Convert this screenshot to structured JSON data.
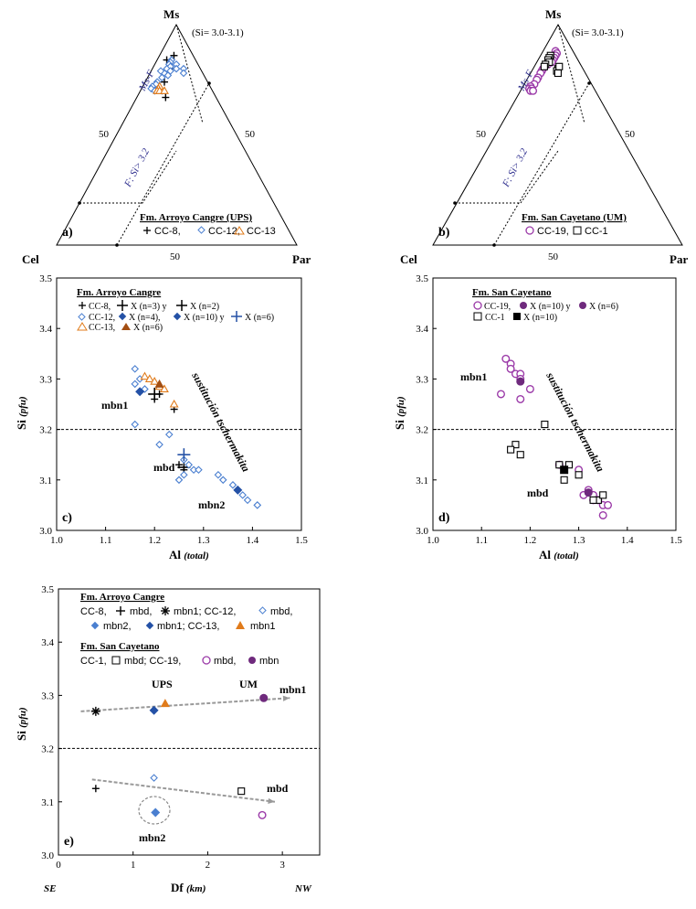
{
  "colors": {
    "black": "#000000",
    "blue": "#4a7fd0",
    "dark_blue": "#2451a6",
    "orange": "#e07b1b",
    "dark_orange": "#a34e12",
    "purple": "#9b3aa8",
    "dark_purple": "#6f2a7d",
    "navy_text": "#2b2b8c",
    "arrow_gray": "#999999"
  },
  "chart_data": [
    {
      "panel": "a",
      "type": "ternary",
      "panel_label": "a)",
      "vertex_labels": {
        "top": "Ms",
        "left": "Cel",
        "right": "Par"
      },
      "note": "(Si= 3.0-3.1)",
      "field_labels": [
        "Ms-F",
        "F: Si> 3.2"
      ],
      "tick_labels": [
        "50",
        "50",
        "50"
      ],
      "legend_title": "Fm. Arroyo Cangre (UPS)",
      "legend": [
        "CC-8,",
        "CC-12,",
        "CC-13"
      ],
      "series": [
        {
          "name": "CC-8",
          "marker": "plus",
          "color": "#000000",
          "points": [
            [
              0.86,
              0.08,
              0.06
            ],
            [
              0.84,
              0.12,
              0.04
            ],
            [
              0.8,
              0.12,
              0.08
            ],
            [
              0.74,
              0.18,
              0.08
            ],
            [
              0.67,
              0.21,
              0.12
            ]
          ]
        },
        {
          "name": "CC-12",
          "marker": "diamond-open",
          "color": "#4a7fd0",
          "points": [
            [
              0.84,
              0.1,
              0.06
            ],
            [
              0.83,
              0.11,
              0.06
            ],
            [
              0.82,
              0.12,
              0.06
            ],
            [
              0.81,
              0.12,
              0.07
            ],
            [
              0.8,
              0.14,
              0.06
            ],
            [
              0.82,
              0.09,
              0.09
            ],
            [
              0.8,
              0.1,
              0.1
            ],
            [
              0.79,
              0.13,
              0.08
            ],
            [
              0.78,
              0.16,
              0.06
            ],
            [
              0.77,
              0.15,
              0.08
            ],
            [
              0.76,
              0.18,
              0.06
            ],
            [
              0.74,
              0.21,
              0.05
            ],
            [
              0.73,
              0.22,
              0.05
            ],
            [
              0.72,
              0.24,
              0.04
            ],
            [
              0.71,
              0.25,
              0.04
            ],
            [
              0.7,
              0.24,
              0.06
            ],
            [
              0.7,
              0.21,
              0.09
            ],
            [
              0.79,
              0.17,
              0.04
            ],
            [
              0.8,
              0.07,
              0.13
            ],
            [
              0.78,
              0.08,
              0.14
            ]
          ]
        },
        {
          "name": "CC-13",
          "marker": "triangle-open",
          "color": "#e07b1b",
          "points": [
            [
              0.72,
              0.21,
              0.07
            ],
            [
              0.71,
              0.22,
              0.07
            ],
            [
              0.7,
              0.23,
              0.07
            ],
            [
              0.7,
              0.22,
              0.08
            ],
            [
              0.7,
              0.2,
              0.1
            ]
          ]
        }
      ]
    },
    {
      "panel": "b",
      "type": "ternary",
      "panel_label": "b)",
      "vertex_labels": {
        "top": "Ms",
        "left": "Cel",
        "right": "Par"
      },
      "note": "(Si= 3.0-3.1)",
      "field_labels": [
        "Ms-F",
        "F: Si> 3.2"
      ],
      "tick_labels": [
        "50",
        "50",
        "50"
      ],
      "legend_title": "Fm. San Cayetano (UM)",
      "legend": [
        "CC-19,",
        "CC-1"
      ],
      "series": [
        {
          "name": "CC-19",
          "marker": "circle-open",
          "color": "#9b3aa8",
          "points": [
            [
              0.88,
              0.07,
              0.05
            ],
            [
              0.87,
              0.07,
              0.06
            ],
            [
              0.86,
              0.08,
              0.06
            ],
            [
              0.85,
              0.09,
              0.06
            ],
            [
              0.84,
              0.1,
              0.06
            ],
            [
              0.83,
              0.11,
              0.06
            ],
            [
              0.82,
              0.13,
              0.05
            ],
            [
              0.8,
              0.16,
              0.04
            ],
            [
              0.79,
              0.17,
              0.04
            ],
            [
              0.78,
              0.18,
              0.04
            ],
            [
              0.76,
              0.2,
              0.04
            ],
            [
              0.75,
              0.21,
              0.04
            ],
            [
              0.73,
              0.23,
              0.04
            ],
            [
              0.72,
              0.25,
              0.03
            ],
            [
              0.71,
              0.26,
              0.03
            ],
            [
              0.71,
              0.25,
              0.04
            ],
            [
              0.7,
              0.26,
              0.04
            ],
            [
              0.7,
              0.25,
              0.05
            ]
          ]
        },
        {
          "name": "CC-1",
          "marker": "square-open",
          "color": "#000000",
          "points": [
            [
              0.86,
              0.1,
              0.04
            ],
            [
              0.85,
              0.11,
              0.04
            ],
            [
              0.84,
              0.12,
              0.04
            ],
            [
              0.83,
              0.12,
              0.05
            ],
            [
              0.82,
              0.14,
              0.04
            ],
            [
              0.81,
              0.15,
              0.04
            ],
            [
              0.8,
              0.1,
              0.1
            ],
            [
              0.79,
              0.11,
              0.1
            ],
            [
              0.78,
              0.11,
              0.11
            ],
            [
              0.81,
              0.09,
              0.1
            ]
          ]
        }
      ]
    },
    {
      "panel": "c",
      "type": "scatter",
      "panel_label": "c)",
      "xlabel": "Al",
      "xlabel_italic": "(total)",
      "ylabel": "Si",
      "ylabel_italic": "(pfu)",
      "xlim": [
        1.0,
        1.5
      ],
      "ylim": [
        3.0,
        3.5
      ],
      "xticks": [
        "1.0",
        "1.1",
        "1.2",
        "1.3",
        "1.4",
        "1.5"
      ],
      "yticks": [
        "3.0",
        "3.1",
        "3.2",
        "3.3",
        "3.4",
        "3.5"
      ],
      "hline": 3.2,
      "annotations": [
        "sustitución tschermakita",
        "mbn1",
        "mbd",
        "mbn2"
      ],
      "legend_title": "Fm. Arroyo Cangre",
      "legend_lines": [
        [
          "CC-8,",
          "X (n=3) y",
          "X (n=2)"
        ],
        [
          "CC-12,",
          "X (n=4),",
          "X (n=10) y",
          "X (n=6)"
        ],
        [
          "CC-13,",
          "X (n=6)"
        ]
      ],
      "series": [
        {
          "name": "CC-8",
          "marker": "plus",
          "color": "#000000",
          "points": [
            [
              1.21,
              3.27
            ],
            [
              1.2,
              3.26
            ],
            [
              1.24,
              3.24
            ],
            [
              1.25,
              3.13
            ],
            [
              1.26,
              3.12
            ]
          ]
        },
        {
          "name": "CC-8 X (n=3)",
          "marker": "plus-large",
          "color": "#000000",
          "points": [
            [
              1.2,
              3.27
            ]
          ]
        },
        {
          "name": "CC-8 X (n=2)",
          "marker": "plus-large",
          "color": "#000000",
          "points": [
            [
              1.26,
              3.125
            ]
          ]
        },
        {
          "name": "CC-12",
          "marker": "diamond-open",
          "color": "#4a7fd0",
          "points": [
            [
              1.16,
              3.32
            ],
            [
              1.17,
              3.3
            ],
            [
              1.16,
              3.29
            ],
            [
              1.18,
              3.28
            ],
            [
              1.16,
              3.21
            ],
            [
              1.23,
              3.19
            ],
            [
              1.21,
              3.17
            ],
            [
              1.26,
              3.14
            ],
            [
              1.27,
              3.13
            ],
            [
              1.28,
              3.12
            ],
            [
              1.29,
              3.12
            ],
            [
              1.26,
              3.11
            ],
            [
              1.33,
              3.11
            ],
            [
              1.34,
              3.1
            ],
            [
              1.36,
              3.09
            ],
            [
              1.37,
              3.08
            ],
            [
              1.38,
              3.07
            ],
            [
              1.39,
              3.06
            ],
            [
              1.41,
              3.05
            ],
            [
              1.41,
              3.05
            ],
            [
              1.25,
              3.1
            ]
          ]
        },
        {
          "name": "CC-12 X (n=4)",
          "marker": "diamond-filled",
          "color": "#2451a6",
          "points": [
            [
              1.17,
              3.275
            ]
          ]
        },
        {
          "name": "CC-12 X (n=10)",
          "marker": "plus-blue",
          "color": "#2451a6",
          "points": [
            [
              1.26,
              3.15
            ]
          ]
        },
        {
          "name": "CC-12 X (n=6)",
          "marker": "diamond-filled",
          "color": "#2451a6",
          "points": [
            [
              1.37,
              3.08
            ]
          ]
        },
        {
          "name": "CC-13",
          "marker": "triangle-open",
          "color": "#e07b1b",
          "points": [
            [
              1.18,
              3.305
            ],
            [
              1.19,
              3.3
            ],
            [
              1.2,
              3.295
            ],
            [
              1.21,
              3.285
            ],
            [
              1.22,
              3.28
            ],
            [
              1.24,
              3.25
            ]
          ]
        },
        {
          "name": "CC-13 X (n=6)",
          "marker": "triangle-filled",
          "color": "#a34e12",
          "points": [
            [
              1.21,
              3.29
            ]
          ]
        }
      ]
    },
    {
      "panel": "d",
      "type": "scatter",
      "panel_label": "d)",
      "xlabel": "Al",
      "xlabel_italic": "(total)",
      "ylabel": "Si",
      "ylabel_italic": "(pfu)",
      "xlim": [
        1.0,
        1.5
      ],
      "ylim": [
        3.0,
        3.5
      ],
      "xticks": [
        "1.0",
        "1.1",
        "1.2",
        "1.3",
        "1.4",
        "1.5"
      ],
      "yticks": [
        "3.0",
        "3.1",
        "3.2",
        "3.3",
        "3.4",
        "3.5"
      ],
      "hline": 3.2,
      "annotations": [
        "sustitución tschermakita",
        "mbn1",
        "mbd"
      ],
      "legend_title": "Fm. San Cayetano",
      "legend_lines": [
        [
          "CC-19,",
          "X (n=10) y",
          "X (n=6)"
        ],
        [
          "CC-1",
          "X (n=10)"
        ]
      ],
      "series": [
        {
          "name": "CC-19",
          "marker": "circle-open",
          "color": "#9b3aa8",
          "points": [
            [
              1.15,
              3.34
            ],
            [
              1.16,
              3.33
            ],
            [
              1.16,
              3.32
            ],
            [
              1.17,
              3.31
            ],
            [
              1.14,
              3.27
            ],
            [
              1.18,
              3.31
            ],
            [
              1.18,
              3.3
            ],
            [
              1.2,
              3.28
            ],
            [
              1.18,
              3.26
            ],
            [
              1.26,
              3.13
            ],
            [
              1.3,
              3.12
            ],
            [
              1.31,
              3.07
            ],
            [
              1.33,
              3.06
            ],
            [
              1.34,
              3.06
            ],
            [
              1.35,
              3.05
            ],
            [
              1.36,
              3.05
            ],
            [
              1.35,
              3.03
            ],
            [
              1.32,
              3.08
            ],
            [
              1.33,
              3.07
            ]
          ]
        },
        {
          "name": "CC-19 X (n=10)",
          "marker": "circle-filled",
          "color": "#6f2a7d",
          "points": [
            [
              1.18,
              3.295
            ]
          ]
        },
        {
          "name": "CC-19 X (n=6)",
          "marker": "circle-filled",
          "color": "#6f2a7d",
          "points": [
            [
              1.32,
              3.075
            ]
          ]
        },
        {
          "name": "CC-1",
          "marker": "square-open",
          "color": "#000000",
          "points": [
            [
              1.17,
              3.17
            ],
            [
              1.16,
              3.16
            ],
            [
              1.18,
              3.15
            ],
            [
              1.23,
              3.21
            ],
            [
              1.26,
              3.13
            ],
            [
              1.28,
              3.13
            ],
            [
              1.27,
              3.1
            ],
            [
              1.3,
              3.11
            ],
            [
              1.34,
              3.06
            ],
            [
              1.35,
              3.07
            ],
            [
              1.33,
              3.06
            ]
          ]
        },
        {
          "name": "CC-1 X (n=10)",
          "marker": "square-filled",
          "color": "#000000",
          "points": [
            [
              1.27,
              3.12
            ]
          ]
        }
      ]
    },
    {
      "panel": "e",
      "type": "scatter",
      "panel_label": "e)",
      "xlabel": "Df",
      "xlabel_italic": "(km)",
      "ylabel": "Si",
      "ylabel_italic": "(pfu)",
      "xlim": [
        0,
        3.5
      ],
      "ylim": [
        3.0,
        3.5
      ],
      "xticks": [
        "0",
        "1",
        "2",
        "3"
      ],
      "yticks": [
        "3.0",
        "3.1",
        "3.2",
        "3.3",
        "3.4",
        "3.5"
      ],
      "hline": 3.2,
      "axis_end_labels": [
        "SE",
        "NW"
      ],
      "annotations": [
        "UPS",
        "UM",
        "mbn1",
        "mbd",
        "mbn2"
      ],
      "legend_title_1": "Fm. Arroyo Cangre",
      "legend_lines_1": [
        [
          "CC-8,",
          "mbd,",
          "mbn1; CC-12,",
          "mbd,"
        ],
        [
          "mbn2,",
          "mbn1; CC-13,",
          "mbn1"
        ]
      ],
      "legend_title_2": "Fm. San Cayetano",
      "legend_lines_2": [
        [
          "CC-1,",
          "mbd; CC-19,",
          "mbd,",
          "mbn"
        ]
      ],
      "series": [
        {
          "name": "CC-8 mbd",
          "marker": "plus",
          "color": "#000000",
          "points": [
            [
              0.5,
              3.125
            ]
          ]
        },
        {
          "name": "CC-8 mbn1",
          "marker": "asterisk",
          "color": "#000000",
          "points": [
            [
              0.5,
              3.27
            ]
          ]
        },
        {
          "name": "CC-12 mbd",
          "marker": "diamond-open",
          "color": "#4a7fd0",
          "points": [
            [
              1.28,
              3.145
            ]
          ]
        },
        {
          "name": "CC-12 mbn2",
          "marker": "diamond-filled-light",
          "color": "#4a7fd0",
          "points": [
            [
              1.3,
              3.08
            ]
          ]
        },
        {
          "name": "CC-12 mbn1",
          "marker": "diamond-filled",
          "color": "#2451a6",
          "points": [
            [
              1.28,
              3.272
            ]
          ]
        },
        {
          "name": "CC-13 mbn1",
          "marker": "triangle-filled",
          "color": "#e07b1b",
          "points": [
            [
              1.43,
              3.285
            ]
          ]
        },
        {
          "name": "CC-1 mbd",
          "marker": "square-open",
          "color": "#000000",
          "points": [
            [
              2.45,
              3.12
            ]
          ]
        },
        {
          "name": "CC-19 mbd",
          "marker": "circle-open",
          "color": "#9b3aa8",
          "points": [
            [
              2.73,
              3.075
            ]
          ]
        },
        {
          "name": "CC-19 mbn",
          "marker": "circle-filled",
          "color": "#6f2a7d",
          "points": [
            [
              2.75,
              3.295
            ]
          ]
        }
      ],
      "trend_lines": [
        {
          "name": "mbn1",
          "from": [
            0.3,
            3.27
          ],
          "to": [
            3.1,
            3.295
          ]
        },
        {
          "name": "mbd",
          "from": [
            0.45,
            3.142
          ],
          "to": [
            2.9,
            3.1
          ]
        }
      ]
    }
  ]
}
